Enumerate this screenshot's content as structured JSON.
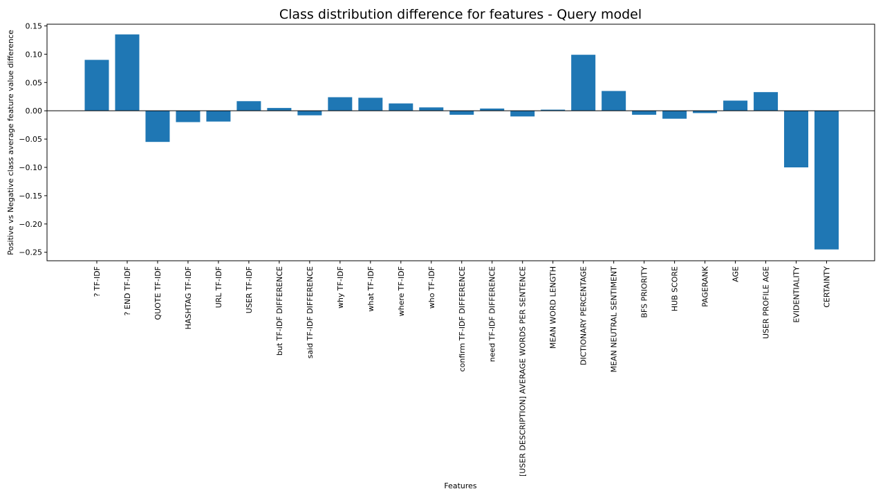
{
  "chart_data": {
    "type": "bar",
    "title": "Class distribution difference for features - Query model",
    "xlabel": "Features",
    "ylabel": "Positive vs Negative class average feature value difference",
    "ylim": [
      -0.265,
      0.153
    ],
    "yticks": [
      0.15,
      0.1,
      0.05,
      0.0,
      -0.05,
      -0.1,
      -0.15,
      -0.2,
      -0.25
    ],
    "ytick_labels": [
      "0.15",
      "0.10",
      "0.05",
      "0.00",
      "−0.05",
      "−0.10",
      "−0.15",
      "−0.20",
      "−0.25"
    ],
    "zero_line": true,
    "grid": false,
    "bar_color": "#1f77b4",
    "categories": [
      "? TF-IDF",
      "? END TF-IDF",
      "QUOTE TF-IDF",
      "HASHTAG TF-IDF",
      "URL TF-IDF",
      "USER TF-IDF",
      "but TF-IDF DIFFERENCE",
      "said TF-IDF DIFFERENCE",
      "why TF-IDF",
      "what TF-IDF",
      "where TF-IDF",
      "who TF-IDF",
      "confirm TF-IDF DIFFERENCE",
      "need TF-IDF DIFFERENCE",
      "[USER DESCRIPTION] AVERAGE WORDS PER SENTENCE",
      "MEAN WORD LENGTH",
      "DICTIONARY PERCENTAGE",
      "MEAN NEUTRAL SENTIMENT",
      "BFS PRIORITY",
      "HUB SCORE",
      "PAGERANK",
      "AGE",
      "USER PROFILE AGE",
      "EVIDENTIALITY",
      "CERTAINTY"
    ],
    "values": [
      0.09,
      0.135,
      -0.055,
      -0.02,
      -0.019,
      0.017,
      0.005,
      -0.008,
      0.024,
      0.023,
      0.013,
      0.006,
      -0.007,
      0.004,
      -0.01,
      0.002,
      0.099,
      0.035,
      -0.007,
      -0.014,
      -0.004,
      0.018,
      0.033,
      -0.1,
      -0.245
    ]
  }
}
